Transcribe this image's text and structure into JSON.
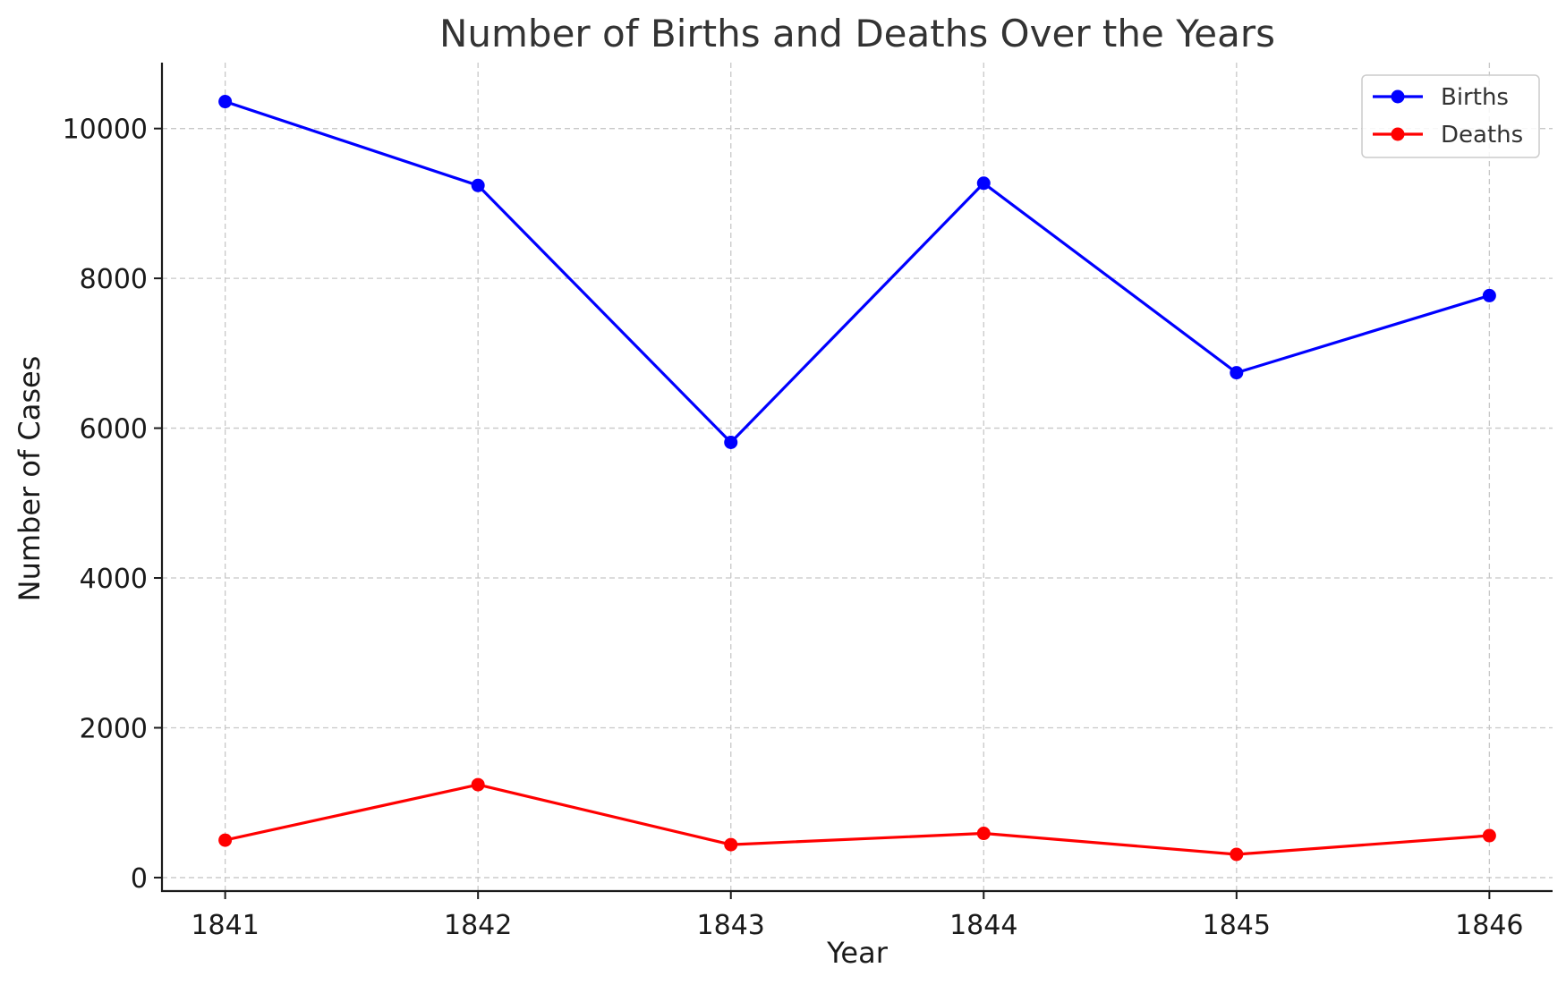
{
  "chart_data": {
    "type": "line",
    "title": "Number of Births and Deaths Over the Years",
    "xlabel": "Year",
    "ylabel": "Number of Cases",
    "x": [
      "1841",
      "1842",
      "1843",
      "1844",
      "1845",
      "1846"
    ],
    "series": [
      {
        "name": "Births",
        "color": "#0000ff",
        "values": [
          10360,
          9240,
          5810,
          9270,
          6740,
          7770
        ]
      },
      {
        "name": "Deaths",
        "color": "#ff0000",
        "values": [
          500,
          1240,
          440,
          590,
          310,
          560
        ]
      }
    ],
    "yticks": [
      0,
      2000,
      4000,
      6000,
      8000,
      10000
    ],
    "ylim": [
      -180,
      10880
    ],
    "xlim": [
      1840.75,
      1846.25
    ],
    "grid": true,
    "legend": "top-right"
  }
}
